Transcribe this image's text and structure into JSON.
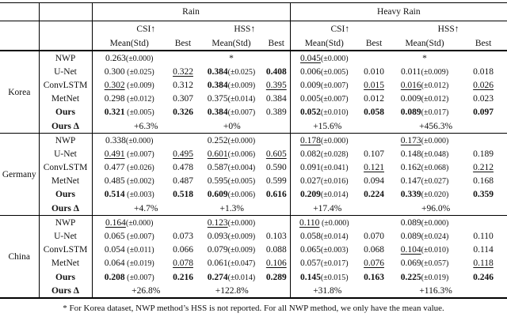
{
  "table": {
    "groups": {
      "rain": "Rain",
      "heavy": "Heavy Rain"
    },
    "metrics": {
      "csi": "CSI↑",
      "hss": "HSS↑"
    },
    "col_labels": {
      "mean": "Mean(Std)",
      "best": "Best"
    }
  },
  "blocks": [
    {
      "region": "Korea",
      "rows": [
        {
          "model": "NWP",
          "bold": false,
          "cells": [
            {
              "m": "0.263",
              "s": "(±0.000)",
              "f": ""
            },
            {
              "m": "",
              "s": "",
              "f": ""
            },
            {
              "m": "*",
              "s": "",
              "f": ""
            },
            {
              "m": "",
              "s": "",
              "f": ""
            },
            {
              "m": "0.045",
              "s": "(±0.000)",
              "f": "u"
            },
            {
              "m": "",
              "s": "",
              "f": ""
            },
            {
              "m": "*",
              "s": "",
              "f": ""
            },
            {
              "m": "",
              "s": "",
              "f": ""
            }
          ]
        },
        {
          "model": "U-Net",
          "bold": false,
          "cells": [
            {
              "m": "0.300",
              "s": " (±0.025)",
              "f": ""
            },
            {
              "m": "0.322",
              "s": "",
              "f": "u"
            },
            {
              "m": "0.384",
              "s": "(±0.025)",
              "f": "b"
            },
            {
              "m": "0.408",
              "s": "",
              "f": "b"
            },
            {
              "m": "0.006",
              "s": "(±0.005)",
              "f": ""
            },
            {
              "m": "0.010",
              "s": "",
              "f": ""
            },
            {
              "m": "0.011",
              "s": "(±0.009)",
              "f": ""
            },
            {
              "m": "0.018",
              "s": "",
              "f": ""
            }
          ]
        },
        {
          "model": "ConvLSTM",
          "bold": false,
          "cells": [
            {
              "m": "0.302",
              "s": " (±0.009)",
              "f": "u"
            },
            {
              "m": "0.312",
              "s": "",
              "f": ""
            },
            {
              "m": "0.384",
              "s": "(±0.009)",
              "f": "b"
            },
            {
              "m": "0.395",
              "s": "",
              "f": "u"
            },
            {
              "m": "0.009",
              "s": "(±0.007)",
              "f": ""
            },
            {
              "m": "0.015",
              "s": "",
              "f": "u"
            },
            {
              "m": "0.016",
              "s": "(±0.012)",
              "f": "u"
            },
            {
              "m": "0.026",
              "s": "",
              "f": "u"
            }
          ]
        },
        {
          "model": "MetNet",
          "bold": false,
          "cells": [
            {
              "m": "0.298",
              "s": " (±0.012)",
              "f": ""
            },
            {
              "m": "0.307",
              "s": "",
              "f": ""
            },
            {
              "m": "0.375",
              "s": "(±0.014)",
              "f": ""
            },
            {
              "m": "0.384",
              "s": "",
              "f": ""
            },
            {
              "m": "0.005",
              "s": "(±0.007)",
              "f": ""
            },
            {
              "m": "0.012",
              "s": "",
              "f": ""
            },
            {
              "m": "0.009",
              "s": "(±0.012)",
              "f": ""
            },
            {
              "m": "0.023",
              "s": "",
              "f": ""
            }
          ]
        },
        {
          "model": "Ours",
          "bold": true,
          "cells": [
            {
              "m": "0.321",
              "s": " (±0.005)",
              "f": "b"
            },
            {
              "m": "0.326",
              "s": "",
              "f": "b"
            },
            {
              "m": "0.384",
              "s": "(±0.007)",
              "f": "b"
            },
            {
              "m": "0.389",
              "s": "",
              "f": ""
            },
            {
              "m": "0.052",
              "s": "(±0.010)",
              "f": "b"
            },
            {
              "m": "0.058",
              "s": "",
              "f": "b"
            },
            {
              "m": "0.089",
              "s": "(±0.017)",
              "f": "b"
            },
            {
              "m": "0.097",
              "s": "",
              "f": "b"
            }
          ]
        }
      ],
      "delta": {
        "label": "Ours Δ",
        "values": [
          "+6.3%",
          "+0%",
          "+15.6%",
          "+456.3%"
        ]
      }
    },
    {
      "region": "Germany",
      "rows": [
        {
          "model": "NWP",
          "bold": false,
          "cells": [
            {
              "m": "0.338",
              "s": "(±0.000)",
              "f": ""
            },
            {
              "m": "",
              "s": "",
              "f": ""
            },
            {
              "m": "0.252",
              "s": "(±0.000)",
              "f": ""
            },
            {
              "m": "",
              "s": "",
              "f": ""
            },
            {
              "m": "0.178",
              "s": "(±0.000)",
              "f": "u"
            },
            {
              "m": "",
              "s": "",
              "f": ""
            },
            {
              "m": "0.173",
              "s": "(±0.000)",
              "f": "u"
            },
            {
              "m": "",
              "s": "",
              "f": ""
            }
          ]
        },
        {
          "model": "U-Net",
          "bold": false,
          "cells": [
            {
              "m": "0.491",
              "s": " (±0.007)",
              "f": "u"
            },
            {
              "m": "0.495",
              "s": "",
              "f": "u"
            },
            {
              "m": "0.601",
              "s": "(±0.006)",
              "f": "u"
            },
            {
              "m": "0.605",
              "s": "",
              "f": "u"
            },
            {
              "m": "0.082",
              "s": "(±0.028)",
              "f": ""
            },
            {
              "m": "0.107",
              "s": "",
              "f": ""
            },
            {
              "m": "0.148",
              "s": "(±0.048)",
              "f": ""
            },
            {
              "m": "0.189",
              "s": "",
              "f": ""
            }
          ]
        },
        {
          "model": "ConvLSTM",
          "bold": false,
          "cells": [
            {
              "m": "0.477",
              "s": " (±0.026)",
              "f": ""
            },
            {
              "m": "0.478",
              "s": "",
              "f": ""
            },
            {
              "m": "0.587",
              "s": "(±0.004)",
              "f": ""
            },
            {
              "m": "0.590",
              "s": "",
              "f": ""
            },
            {
              "m": "0.091",
              "s": "(±0.041)",
              "f": ""
            },
            {
              "m": "0.121",
              "s": "",
              "f": "u"
            },
            {
              "m": "0.162",
              "s": "(±0.068)",
              "f": ""
            },
            {
              "m": "0.212",
              "s": "",
              "f": "u"
            }
          ]
        },
        {
          "model": "MetNet",
          "bold": false,
          "cells": [
            {
              "m": "0.485",
              "s": " (±0.002)",
              "f": ""
            },
            {
              "m": "0.487",
              "s": "",
              "f": ""
            },
            {
              "m": "0.595",
              "s": "(±0.005)",
              "f": ""
            },
            {
              "m": "0.599",
              "s": "",
              "f": ""
            },
            {
              "m": "0.027",
              "s": "(±0.016)",
              "f": ""
            },
            {
              "m": "0.094",
              "s": "",
              "f": ""
            },
            {
              "m": "0.147",
              "s": "(±0.027)",
              "f": ""
            },
            {
              "m": "0.168",
              "s": "",
              "f": ""
            }
          ]
        },
        {
          "model": "Ours",
          "bold": true,
          "cells": [
            {
              "m": "0.514",
              "s": " (±0.003)",
              "f": "b"
            },
            {
              "m": "0.518",
              "s": "",
              "f": "b"
            },
            {
              "m": "0.609",
              "s": "(±0.006)",
              "f": "b"
            },
            {
              "m": "0.616",
              "s": "",
              "f": "b"
            },
            {
              "m": "0.209",
              "s": "(±0.014)",
              "f": "b"
            },
            {
              "m": "0.224",
              "s": "",
              "f": "b"
            },
            {
              "m": "0.339",
              "s": "(±0.020)",
              "f": "b"
            },
            {
              "m": "0.359",
              "s": "",
              "f": "b"
            }
          ]
        }
      ],
      "delta": {
        "label": "Ours Δ",
        "values": [
          "+4.7%",
          "+1.3%",
          "+17.4%",
          "+96.0%"
        ]
      }
    },
    {
      "region": "China",
      "rows": [
        {
          "model": "NWP",
          "bold": false,
          "cells": [
            {
              "m": "0.164",
              "s": "(±0.000)",
              "f": "u"
            },
            {
              "m": "",
              "s": "",
              "f": ""
            },
            {
              "m": "0.123",
              "s": "(±0.000)",
              "f": "u"
            },
            {
              "m": "",
              "s": "",
              "f": ""
            },
            {
              "m": "0.110",
              "s": " (±0.000)",
              "f": "u"
            },
            {
              "m": "",
              "s": "",
              "f": ""
            },
            {
              "m": "0.089",
              "s": "(±0.000)",
              "f": ""
            },
            {
              "m": "",
              "s": "",
              "f": ""
            }
          ]
        },
        {
          "model": "U-Net",
          "bold": false,
          "cells": [
            {
              "m": "0.065",
              "s": " (±0.007)",
              "f": ""
            },
            {
              "m": "0.073",
              "s": "",
              "f": ""
            },
            {
              "m": "0.093",
              "s": "(±0.009)",
              "f": ""
            },
            {
              "m": "0.103",
              "s": "",
              "f": ""
            },
            {
              "m": "0.058",
              "s": "(±0.014)",
              "f": ""
            },
            {
              "m": "0.070",
              "s": "",
              "f": ""
            },
            {
              "m": "0.089",
              "s": "(±0.024)",
              "f": ""
            },
            {
              "m": "0.110",
              "s": "",
              "f": ""
            }
          ]
        },
        {
          "model": "ConvLSTM",
          "bold": false,
          "cells": [
            {
              "m": "0.054",
              "s": " (±0.011)",
              "f": ""
            },
            {
              "m": "0.066",
              "s": "",
              "f": ""
            },
            {
              "m": "0.079",
              "s": "(±0.009)",
              "f": ""
            },
            {
              "m": "0.088",
              "s": "",
              "f": ""
            },
            {
              "m": "0.065",
              "s": "(±0.003)",
              "f": ""
            },
            {
              "m": "0.068",
              "s": "",
              "f": ""
            },
            {
              "m": "0.104",
              "s": "(±0.010)",
              "f": "u"
            },
            {
              "m": "0.114",
              "s": "",
              "f": ""
            }
          ]
        },
        {
          "model": "MetNet",
          "bold": false,
          "cells": [
            {
              "m": "0.064",
              "s": " (±0.019)",
              "f": ""
            },
            {
              "m": "0.078",
              "s": "",
              "f": "u"
            },
            {
              "m": "0.061",
              "s": "(±0.047)",
              "f": ""
            },
            {
              "m": "0.106",
              "s": "",
              "f": "u"
            },
            {
              "m": "0.057",
              "s": "(±0.017)",
              "f": ""
            },
            {
              "m": "0.076",
              "s": "",
              "f": "u"
            },
            {
              "m": "0.069",
              "s": "(±0.057)",
              "f": ""
            },
            {
              "m": "0.118",
              "s": "",
              "f": "u"
            }
          ]
        },
        {
          "model": "Ours",
          "bold": true,
          "cells": [
            {
              "m": "0.208",
              "s": " (±0.007)",
              "f": "b"
            },
            {
              "m": "0.216",
              "s": "",
              "f": "b"
            },
            {
              "m": "0.274",
              "s": "(±0.014)",
              "f": "b"
            },
            {
              "m": "0.289",
              "s": "",
              "f": "b"
            },
            {
              "m": "0.145",
              "s": "(±0.015)",
              "f": "b"
            },
            {
              "m": "0.163",
              "s": "",
              "f": "b"
            },
            {
              "m": "0.225",
              "s": "(±0.019)",
              "f": "b"
            },
            {
              "m": "0.246",
              "s": "",
              "f": "b"
            }
          ]
        }
      ],
      "delta": {
        "label": "Ours Δ",
        "values": [
          "+26.8%",
          "+122.8%",
          "+31.8%",
          "+116.3%"
        ]
      }
    }
  ],
  "footnote": "* For Korea dataset, NWP method’s HSS is not reported. For all NWP method, we only have the mean value."
}
